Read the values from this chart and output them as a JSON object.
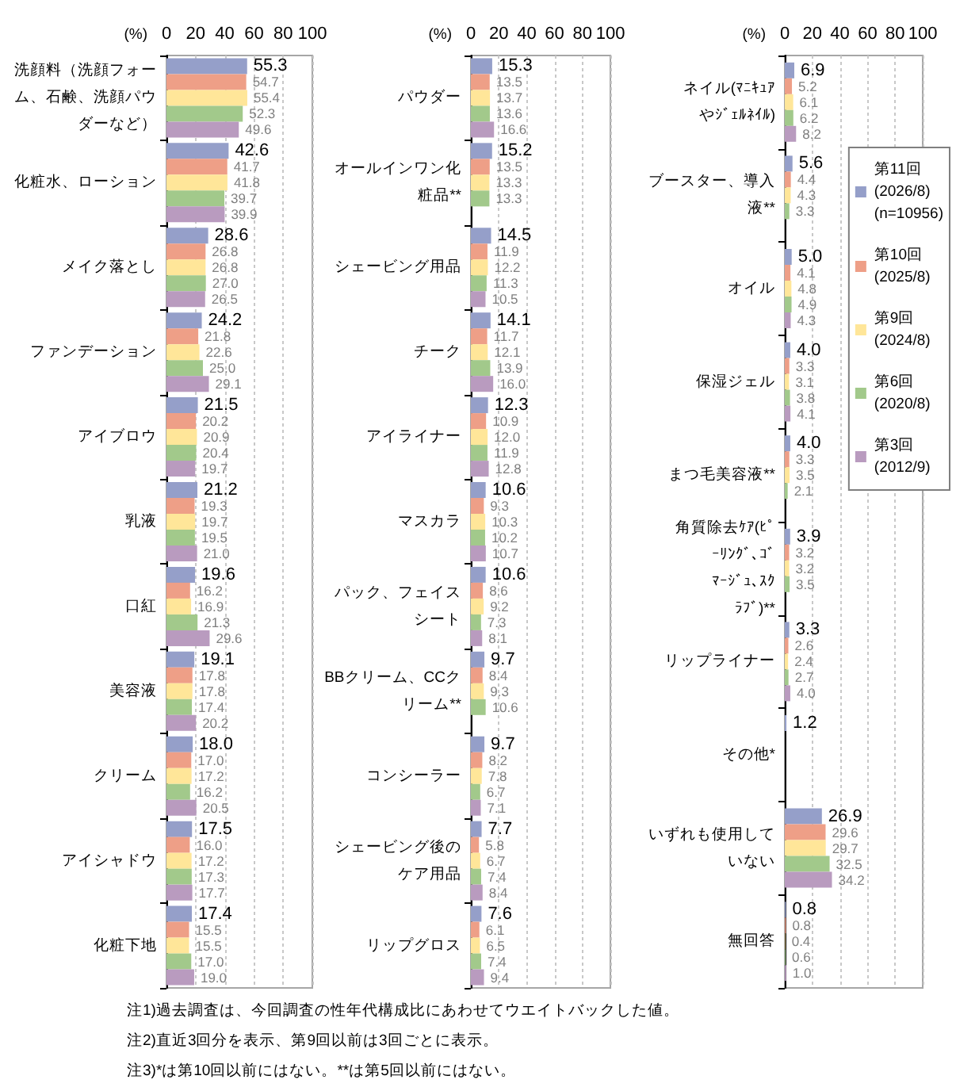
{
  "chart_data": [
    {
      "type": "bar",
      "orientation": "horizontal",
      "xlabel": "(%)",
      "xlim": [
        0,
        100
      ],
      "xticks": [
        0,
        20,
        40,
        60,
        80,
        100
      ],
      "grid": "x",
      "categories": [
        "洗顔料（洗顔フォーム、石鹸、洗顔パウダーなど）",
        "化粧水、ローション",
        "メイク落とし",
        "ファンデーション",
        "アイブロウ",
        "乳液",
        "口紅",
        "美容液",
        "クリーム",
        "アイシャドウ",
        "化粧下地"
      ],
      "series": [
        {
          "color": "#959fc9",
          "values": [
            55.3,
            42.6,
            28.6,
            24.2,
            21.5,
            21.2,
            19.6,
            19.1,
            18.0,
            17.5,
            17.4
          ],
          "value_labels": [
            "55.3",
            "42.6",
            "28.6",
            "24.2",
            "21.5",
            "21.2",
            "19.6",
            "19.1",
            "18.0",
            "17.5",
            "17.4"
          ]
        },
        {
          "color": "#ee9f87",
          "values": [
            54.7,
            41.7,
            26.8,
            21.8,
            20.2,
            19.3,
            16.2,
            17.8,
            17.0,
            16.0,
            15.5
          ],
          "value_labels": [
            "54.7",
            "41.7",
            "26.8",
            "21.8",
            "20.2",
            "19.3",
            "16.2",
            "17.8",
            "17.0",
            "16.0",
            "15.5"
          ]
        },
        {
          "color": "#ffe699",
          "values": [
            55.4,
            41.8,
            26.8,
            22.6,
            20.9,
            19.7,
            16.9,
            17.8,
            17.2,
            17.2,
            15.5
          ],
          "value_labels": [
            "55.4",
            "41.8",
            "26.8",
            "22.6",
            "20.9",
            "19.7",
            "16.9",
            "17.8",
            "17.2",
            "17.2",
            "15.5"
          ]
        },
        {
          "color": "#a2c98b",
          "values": [
            52.3,
            39.7,
            27.0,
            25.0,
            20.4,
            19.5,
            21.3,
            17.4,
            16.2,
            17.3,
            17.0
          ],
          "value_labels": [
            "52.3",
            "39.7",
            "27.0",
            "25.0",
            "20.4",
            "19.5",
            "21.3",
            "17.4",
            "16.2",
            "17.3",
            "17.0"
          ]
        },
        {
          "color": "#b99bbf",
          "values": [
            49.6,
            39.9,
            26.5,
            29.1,
            19.7,
            21.0,
            29.6,
            20.2,
            20.5,
            17.7,
            19.0
          ],
          "value_labels": [
            "49.6",
            "39.9",
            "26.5",
            "29.1",
            "19.7",
            "21.0",
            "29.6",
            "20.2",
            "20.5",
            "17.7",
            "19.0"
          ]
        }
      ],
      "annotations": [
        "注1)過去調査は、今回調査の性年代構成比にあわせてウエイトバックした値。",
        "注2)直近3回分を表示、第9回以前は3回ごとに表示。",
        "注3)*は第10回以前にはない。**は第5回以前にはない。"
      ]
    },
    {
      "type": "bar",
      "orientation": "horizontal",
      "xlabel": "(%)",
      "xlim": [
        0,
        100
      ],
      "xticks": [
        0,
        20,
        40,
        60,
        80,
        100
      ],
      "grid": "x",
      "categories": [
        "パウダー",
        "オールインワン化粧品**",
        "シェービング用品",
        "チーク",
        "アイライナー",
        "マスカラ",
        "パック、フェイスシート",
        "BBクリーム、CCクリーム**",
        "コンシーラー",
        "シェービング後のケア用品",
        "リップグロス"
      ],
      "series": [
        {
          "color": "#959fc9",
          "values": [
            15.3,
            15.2,
            14.5,
            14.1,
            12.3,
            10.6,
            10.6,
            9.7,
            9.7,
            7.7,
            7.6
          ],
          "value_labels": [
            "15.3",
            "15.2",
            "14.5",
            "14.1",
            "12.3",
            "10.6",
            "10.6",
            "9.7",
            "9.7",
            "7.7",
            "7.6"
          ]
        },
        {
          "color": "#ee9f87",
          "values": [
            13.5,
            13.5,
            11.9,
            11.7,
            10.9,
            9.3,
            8.6,
            8.4,
            8.2,
            5.8,
            6.1
          ],
          "value_labels": [
            "13.5",
            "13.5",
            "11.9",
            "11.7",
            "10.9",
            "9.3",
            "8.6",
            "8.4",
            "8.2",
            "5.8",
            "6.1"
          ]
        },
        {
          "color": "#ffe699",
          "values": [
            13.7,
            13.3,
            12.2,
            12.1,
            12.0,
            10.3,
            9.2,
            9.3,
            7.8,
            6.7,
            6.5
          ],
          "value_labels": [
            "13.7",
            "13.3",
            "12.2",
            "12.1",
            "12.0",
            "10.3",
            "9.2",
            "9.3",
            "7.8",
            "6.7",
            "6.5"
          ]
        },
        {
          "color": "#a2c98b",
          "values": [
            13.6,
            13.3,
            11.3,
            13.9,
            11.9,
            10.2,
            7.3,
            10.6,
            6.7,
            7.4,
            7.4
          ],
          "value_labels": [
            "13.6",
            "13.3",
            "11.3",
            "13.9",
            "11.9",
            "10.2",
            "7.3",
            "10.6",
            "6.7",
            "7.4",
            "7.4"
          ]
        },
        {
          "color": "#b99bbf",
          "values": [
            16.6,
            null,
            10.5,
            16.0,
            12.8,
            10.7,
            8.1,
            null,
            7.1,
            8.4,
            9.4
          ],
          "value_labels": [
            "16.6",
            null,
            "10.5",
            "16.0",
            "12.8",
            "10.7",
            "8.1",
            null,
            "7.1",
            "8.4",
            "9.4"
          ]
        }
      ]
    },
    {
      "type": "bar",
      "orientation": "horizontal",
      "xlabel": "(%)",
      "xlim": [
        0,
        100
      ],
      "xticks": [
        0,
        20,
        40,
        60,
        80,
        100
      ],
      "grid": "x",
      "legend": "top right",
      "categories": [
        "ネイル(ﾏﾆｷｭｱやｼﾞｪﾙﾈｲﾙ)",
        "ブースター、導入液**",
        "オイル",
        "保湿ジェル",
        "まつ毛美容液**",
        "角質除去ｹｱ(ﾋﾟｰﾘﾝｸﾞ､ｺﾞﾏｰｼﾞｭ､ｽｸﾗﾌﾞ)**",
        "リップライナー",
        "その他*",
        "いずれも使用していない",
        "無回答"
      ],
      "series": [
        {
          "name": "第11回 (2026/8) (n=10956)",
          "color": "#959fc9",
          "values": [
            6.9,
            5.6,
            5.0,
            4.0,
            4.0,
            3.9,
            3.3,
            1.2,
            26.9,
            0.8
          ],
          "value_labels": [
            "6.9",
            "5.6",
            "5.0",
            "4.0",
            "4.0",
            "3.9",
            "3.3",
            "1.2",
            "26.9",
            "0.8"
          ]
        },
        {
          "name": "第10回 (2025/8)",
          "color": "#ee9f87",
          "values": [
            5.2,
            4.4,
            4.1,
            3.3,
            3.3,
            3.2,
            2.6,
            null,
            29.6,
            0.8
          ],
          "value_labels": [
            "5.2",
            "4.4",
            "4.1",
            "3.3",
            "3.3",
            "3.2",
            "2.6",
            null,
            "29.6",
            "0.8"
          ]
        },
        {
          "name": "第9回 (2024/8)",
          "color": "#ffe699",
          "values": [
            6.1,
            4.3,
            4.8,
            3.1,
            3.5,
            3.2,
            2.4,
            null,
            29.7,
            0.4
          ],
          "value_labels": [
            "6.1",
            "4.3",
            "4.8",
            "3.1",
            "3.5",
            "3.2",
            "2.4",
            null,
            "29.7",
            "0.4"
          ]
        },
        {
          "name": "第6回 (2020/8)",
          "color": "#a2c98b",
          "values": [
            6.2,
            3.3,
            4.9,
            3.8,
            2.1,
            3.5,
            2.7,
            null,
            32.5,
            0.6
          ],
          "value_labels": [
            "6.2",
            "3.3",
            "4.9",
            "3.8",
            "2.1",
            "3.5",
            "2.7",
            null,
            "32.5",
            "0.6"
          ]
        },
        {
          "name": "第3回 (2012/9)",
          "color": "#b99bbf",
          "values": [
            8.2,
            null,
            4.3,
            4.1,
            null,
            null,
            4.0,
            null,
            34.2,
            1.0
          ],
          "value_labels": [
            "8.2",
            null,
            "4.3",
            "4.1",
            null,
            null,
            "4.0",
            null,
            "34.2",
            "1.0"
          ]
        }
      ]
    }
  ]
}
